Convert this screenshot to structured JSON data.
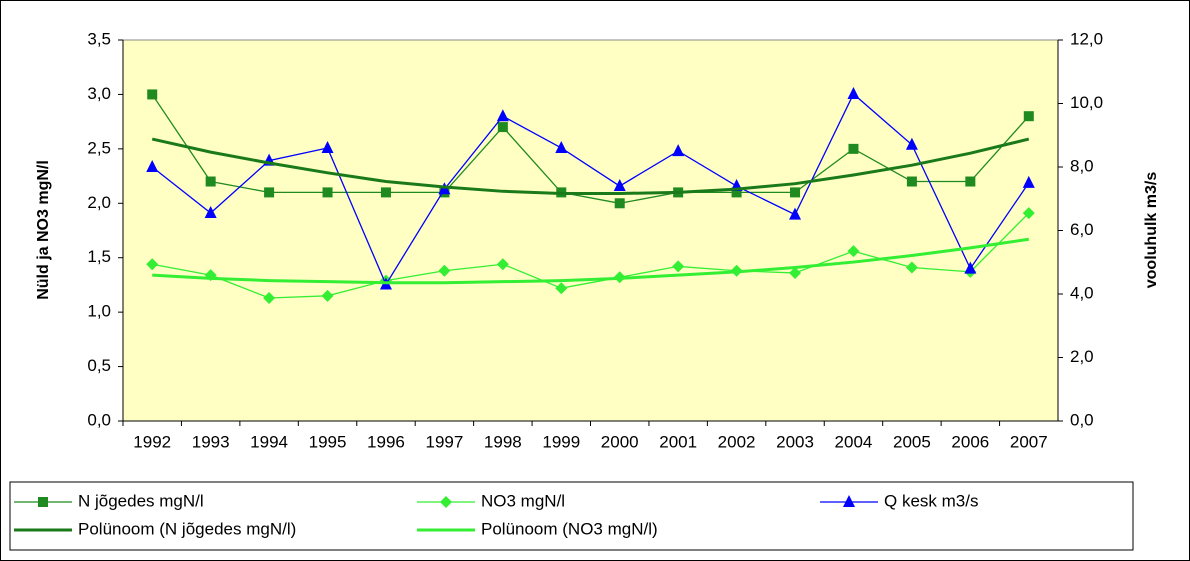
{
  "chart_data": {
    "type": "line",
    "categories": [
      "1992",
      "1993",
      "1994",
      "1995",
      "1996",
      "1997",
      "1998",
      "1999",
      "2000",
      "2001",
      "2002",
      "2003",
      "2004",
      "2005",
      "2006",
      "2007"
    ],
    "ylabel": "Nüld ja NO3 mgN/l",
    "y2label": "vooluhulk m3/s",
    "ylim": [
      0,
      3.5
    ],
    "yticks": [
      {
        "value": 0,
        "label": "0,0"
      },
      {
        "value": 0.5,
        "label": "0,5"
      },
      {
        "value": 1,
        "label": "1,0"
      },
      {
        "value": 1.5,
        "label": "1,5"
      },
      {
        "value": 2,
        "label": "2,0"
      },
      {
        "value": 2.5,
        "label": "2,5"
      },
      {
        "value": 3,
        "label": "3,0"
      },
      {
        "value": 3.5,
        "label": "3,5"
      }
    ],
    "y2lim": [
      0,
      12
    ],
    "y2ticks": [
      {
        "value": 0,
        "label": "0,0"
      },
      {
        "value": 2,
        "label": "2,0"
      },
      {
        "value": 4,
        "label": "4,0"
      },
      {
        "value": 6,
        "label": "6,0"
      },
      {
        "value": 8,
        "label": "8,0"
      },
      {
        "value": 10,
        "label": "10,0"
      },
      {
        "value": 12,
        "label": "12,0"
      }
    ],
    "legend": "bottom",
    "series": [
      {
        "name": "N jõgedes mgN/l",
        "color": "#1f8a1f",
        "marker": "square",
        "values": [
          3.0,
          2.2,
          2.1,
          2.1,
          2.1,
          2.1,
          2.7,
          2.1,
          2.0,
          2.1,
          2.1,
          2.1,
          2.5,
          2.2,
          2.2,
          2.8
        ]
      },
      {
        "name": "NO3 mgN/l",
        "color": "#33ee33",
        "marker": "diamond",
        "values": [
          1.44,
          1.34,
          1.13,
          1.15,
          1.29,
          1.38,
          1.44,
          1.22,
          1.32,
          1.42,
          1.38,
          1.36,
          1.56,
          1.41,
          1.37,
          1.91
        ]
      },
      {
        "name": "Q kesk m3/s",
        "color": "#0000ff",
        "marker": "triangle",
        "axis": "y2",
        "values": [
          8.0,
          6.55,
          8.2,
          8.6,
          4.3,
          7.3,
          9.6,
          8.6,
          7.4,
          8.5,
          7.4,
          6.5,
          10.3,
          8.7,
          4.8,
          7.5
        ]
      },
      {
        "name": "Polünoom (N jõgedes mgN/l)",
        "color": "#1a7a1a",
        "line_width": 3,
        "values": [
          2.59,
          2.47,
          2.37,
          2.28,
          2.2,
          2.15,
          2.11,
          2.09,
          2.09,
          2.1,
          2.13,
          2.18,
          2.26,
          2.35,
          2.46,
          2.59
        ]
      },
      {
        "name": "Polünoom (NO3 mgN/l)",
        "color": "#33ee33",
        "line_width": 3,
        "values": [
          1.34,
          1.31,
          1.29,
          1.28,
          1.27,
          1.27,
          1.28,
          1.29,
          1.31,
          1.34,
          1.37,
          1.41,
          1.46,
          1.52,
          1.59,
          1.67
        ]
      }
    ]
  }
}
